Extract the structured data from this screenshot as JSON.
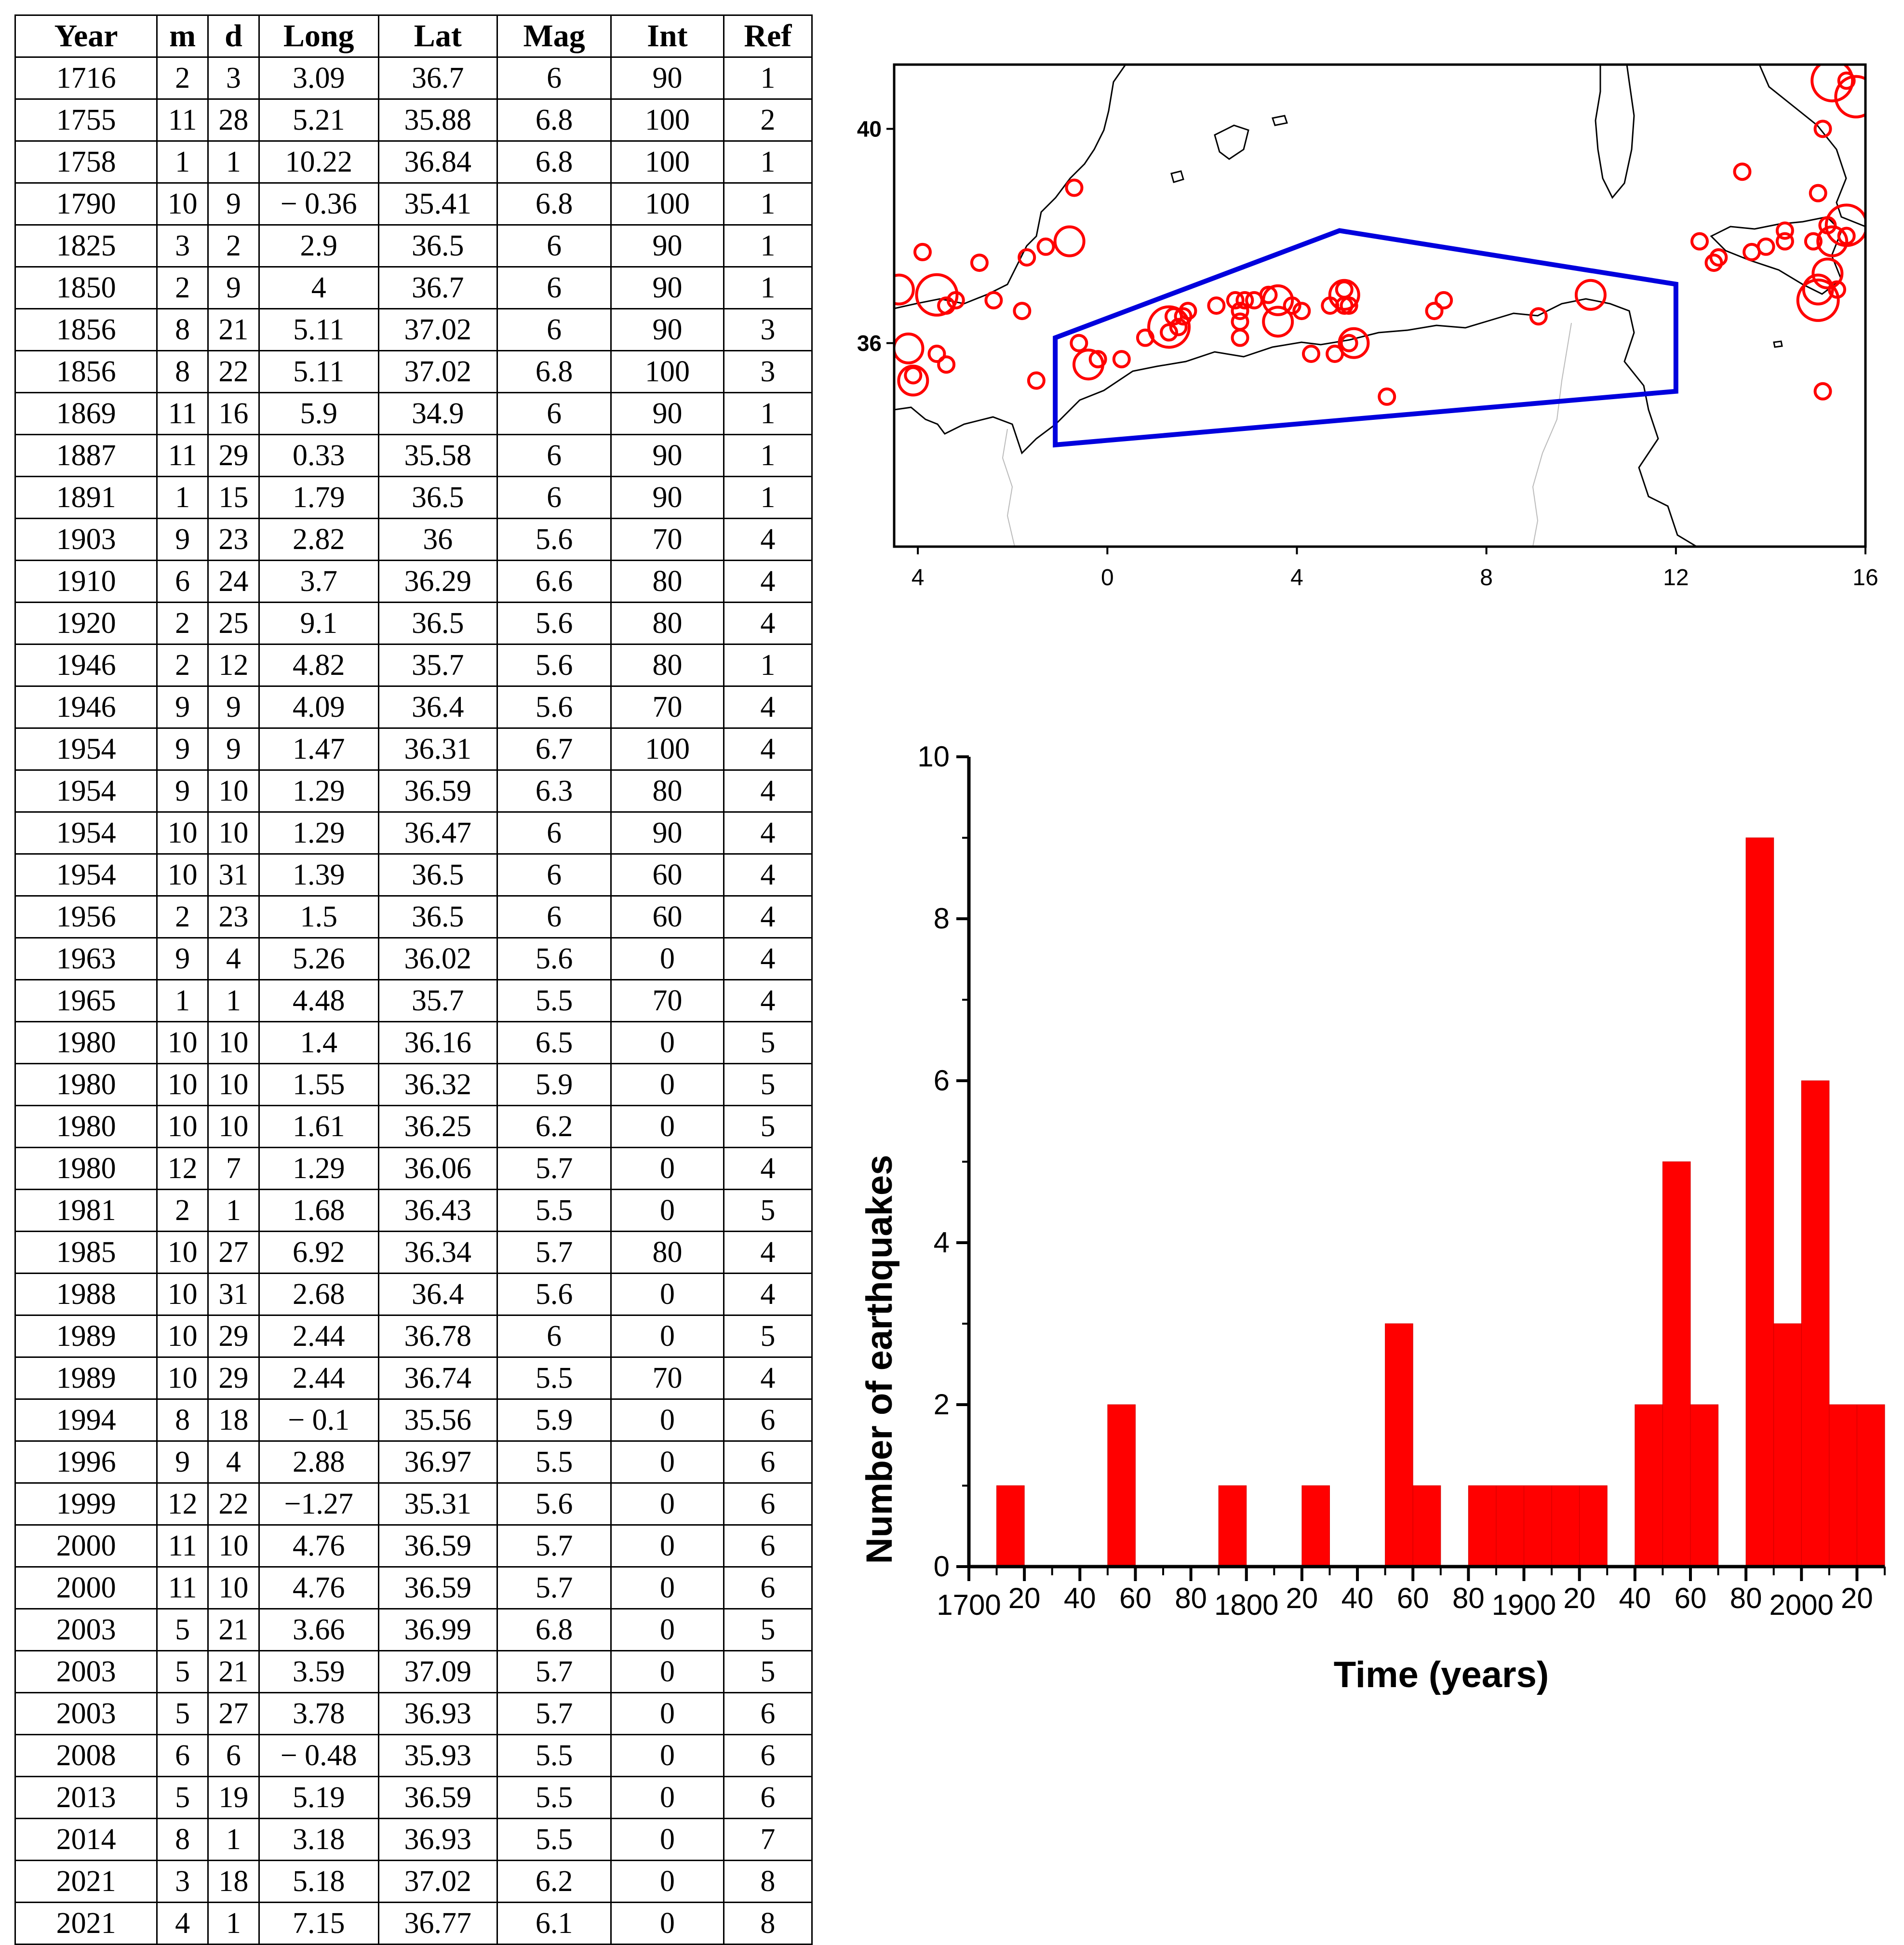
{
  "table": {
    "headers": [
      "Year",
      "m",
      "d",
      "Long",
      "Lat",
      "Mag",
      "Int",
      "Ref"
    ],
    "rows": [
      [
        "1716",
        "2",
        "3",
        "3.09",
        "36.7",
        "6",
        "90",
        "1"
      ],
      [
        "1755",
        "11",
        "28",
        "5.21",
        "35.88",
        "6.8",
        "100",
        "2"
      ],
      [
        "1758",
        "1",
        "1",
        "10.22",
        "36.84",
        "6.8",
        "100",
        "1"
      ],
      [
        "1790",
        "10",
        "9",
        "− 0.36",
        "35.41",
        "6.8",
        "100",
        "1"
      ],
      [
        "1825",
        "3",
        "2",
        "2.9",
        "36.5",
        "6",
        "90",
        "1"
      ],
      [
        "1850",
        "2",
        "9",
        "4",
        "36.7",
        "6",
        "90",
        "1"
      ],
      [
        "1856",
        "8",
        "21",
        "5.11",
        "37.02",
        "6",
        "90",
        "3"
      ],
      [
        "1856",
        "8",
        "22",
        "5.11",
        "37.02",
        "6.8",
        "100",
        "3"
      ],
      [
        "1869",
        "11",
        "16",
        "5.9",
        "34.9",
        "6",
        "90",
        "1"
      ],
      [
        "1887",
        "11",
        "29",
        "0.33",
        "35.58",
        "6",
        "90",
        "1"
      ],
      [
        "1891",
        "1",
        "15",
        "1.79",
        "36.5",
        "6",
        "90",
        "1"
      ],
      [
        "1903",
        "9",
        "23",
        "2.82",
        "36",
        "5.6",
        "70",
        "4"
      ],
      [
        "1910",
        "6",
        "24",
        "3.7",
        "36.29",
        "6.6",
        "80",
        "4"
      ],
      [
        "1920",
        "2",
        "25",
        "9.1",
        "36.5",
        "5.6",
        "80",
        "4"
      ],
      [
        "1946",
        "2",
        "12",
        "4.82",
        "35.7",
        "5.6",
        "80",
        "1"
      ],
      [
        "1946",
        "9",
        "9",
        "4.09",
        "36.4",
        "5.6",
        "70",
        "4"
      ],
      [
        "1954",
        "9",
        "9",
        "1.47",
        "36.31",
        "6.7",
        "100",
        "4"
      ],
      [
        "1954",
        "9",
        "10",
        "1.29",
        "36.59",
        "6.3",
        "80",
        "4"
      ],
      [
        "1954",
        "10",
        "10",
        "1.29",
        "36.47",
        "6",
        "90",
        "4"
      ],
      [
        "1954",
        "10",
        "31",
        "1.39",
        "36.5",
        "6",
        "60",
        "4"
      ],
      [
        "1956",
        "2",
        "23",
        "1.5",
        "36.5",
        "6",
        "60",
        "4"
      ],
      [
        "1963",
        "9",
        "4",
        "5.26",
        "36.02",
        "5.6",
        "0",
        "4"
      ],
      [
        "1965",
        "1",
        "1",
        "4.48",
        "35.7",
        "5.5",
        "70",
        "4"
      ],
      [
        "1980",
        "10",
        "10",
        "1.4",
        "36.16",
        "6.5",
        "0",
        "5"
      ],
      [
        "1980",
        "10",
        "10",
        "1.55",
        "36.32",
        "5.9",
        "0",
        "5"
      ],
      [
        "1980",
        "10",
        "10",
        "1.61",
        "36.25",
        "6.2",
        "0",
        "5"
      ],
      [
        "1980",
        "12",
        "7",
        "1.29",
        "36.06",
        "5.7",
        "0",
        "4"
      ],
      [
        "1981",
        "2",
        "1",
        "1.68",
        "36.43",
        "5.5",
        "0",
        "5"
      ],
      [
        "1985",
        "10",
        "27",
        "6.92",
        "36.34",
        "5.7",
        "80",
        "4"
      ],
      [
        "1988",
        "10",
        "31",
        "2.68",
        "36.4",
        "5.6",
        "0",
        "4"
      ],
      [
        "1989",
        "10",
        "29",
        "2.44",
        "36.78",
        "6",
        "0",
        "5"
      ],
      [
        "1989",
        "10",
        "29",
        "2.44",
        "36.74",
        "5.5",
        "70",
        "4"
      ],
      [
        "1994",
        "8",
        "18",
        "− 0.1",
        "35.56",
        "5.9",
        "0",
        "6"
      ],
      [
        "1996",
        "9",
        "4",
        "2.88",
        "36.97",
        "5.5",
        "0",
        "6"
      ],
      [
        "1999",
        "12",
        "22",
        "−1.27",
        "35.31",
        "5.6",
        "0",
        "6"
      ],
      [
        "2000",
        "11",
        "10",
        "4.76",
        "36.59",
        "5.7",
        "0",
        "6"
      ],
      [
        "2000",
        "11",
        "10",
        "4.76",
        "36.59",
        "5.7",
        "0",
        "6"
      ],
      [
        "2003",
        "5",
        "21",
        "3.66",
        "36.99",
        "6.8",
        "0",
        "5"
      ],
      [
        "2003",
        "5",
        "21",
        "3.59",
        "37.09",
        "5.7",
        "0",
        "5"
      ],
      [
        "2003",
        "5",
        "27",
        "3.78",
        "36.93",
        "5.7",
        "0",
        "6"
      ],
      [
        "2008",
        "6",
        "6",
        "− 0.48",
        "35.93",
        "5.5",
        "0",
        "6"
      ],
      [
        "2013",
        "5",
        "19",
        "5.19",
        "36.59",
        "5.5",
        "0",
        "6"
      ],
      [
        "2014",
        "8",
        "1",
        "3.18",
        "36.93",
        "5.5",
        "0",
        "7"
      ],
      [
        "2021",
        "3",
        "18",
        "5.18",
        "37.02",
        "6.2",
        "0",
        "8"
      ],
      [
        "2021",
        "4",
        "1",
        "7.15",
        "36.77",
        "6.1",
        "0",
        "8"
      ]
    ]
  },
  "map": {
    "x_range": [
      -4.5,
      16
    ],
    "y_range": [
      32.2,
      41.2
    ],
    "x_ticks": [
      "4",
      "0",
      "4",
      "8",
      "12",
      "16"
    ],
    "y_ticks": [
      "40",
      "36"
    ],
    "colors": {
      "epicenter": "#ff0000",
      "zone": "#0000dd",
      "coast": "#000000",
      "border": "#bbbbbb"
    },
    "zone_polygon": [
      [
        -1.1,
        36.1
      ],
      [
        4.9,
        38.1
      ],
      [
        12.0,
        37.1
      ],
      [
        12.0,
        35.1
      ],
      [
        -1.1,
        34.1
      ]
    ],
    "events": [
      [
        15.3,
        40.9,
        3
      ],
      [
        15.8,
        40.6,
        3
      ],
      [
        15.6,
        40.9,
        1
      ],
      [
        15.1,
        40.0,
        1
      ],
      [
        13.4,
        39.2,
        1
      ],
      [
        15.0,
        38.8,
        1
      ],
      [
        15.6,
        38.2,
        3
      ],
      [
        15.2,
        38.2,
        1
      ],
      [
        15.6,
        38.0,
        1
      ],
      [
        15.3,
        37.9,
        2
      ],
      [
        14.9,
        37.9,
        1
      ],
      [
        14.3,
        37.9,
        1
      ],
      [
        14.3,
        38.1,
        1
      ],
      [
        13.9,
        37.8,
        1
      ],
      [
        13.6,
        37.7,
        1
      ],
      [
        12.5,
        37.9,
        1
      ],
      [
        12.9,
        37.6,
        1
      ],
      [
        12.8,
        37.5,
        1
      ],
      [
        15.2,
        37.3,
        2
      ],
      [
        15.0,
        37.0,
        2
      ],
      [
        15.0,
        36.8,
        3
      ],
      [
        15.4,
        37.0,
        1
      ],
      [
        15.1,
        35.1,
        1
      ],
      [
        -3.9,
        37.7,
        1
      ],
      [
        -2.7,
        37.5,
        1
      ],
      [
        -1.7,
        37.6,
        1
      ],
      [
        -1.3,
        37.8,
        1
      ],
      [
        -0.8,
        37.9,
        2
      ],
      [
        -0.7,
        38.9,
        1
      ],
      [
        -3.6,
        36.9,
        3
      ],
      [
        -4.4,
        37.0,
        2
      ],
      [
        -3.2,
        36.8,
        1
      ],
      [
        -3.4,
        36.7,
        1
      ],
      [
        -2.4,
        36.8,
        1
      ],
      [
        -1.8,
        36.6,
        1
      ],
      [
        -4.2,
        35.9,
        2
      ],
      [
        -3.6,
        35.8,
        1
      ],
      [
        -3.4,
        35.6,
        1
      ],
      [
        -4.1,
        35.3,
        2
      ],
      [
        -4.1,
        35.4,
        1
      ],
      [
        -1.5,
        35.3,
        1
      ],
      [
        -0.4,
        35.6,
        2
      ],
      [
        -0.2,
        35.7,
        1
      ],
      [
        0.3,
        35.7,
        1
      ],
      [
        0.8,
        36.1,
        1
      ],
      [
        -0.6,
        36.0,
        1
      ],
      [
        1.3,
        36.3,
        3
      ],
      [
        1.4,
        36.5,
        1
      ],
      [
        1.6,
        36.5,
        1
      ],
      [
        1.3,
        36.2,
        1
      ],
      [
        1.5,
        36.3,
        1
      ],
      [
        1.7,
        36.6,
        1
      ],
      [
        2.3,
        36.7,
        1
      ],
      [
        2.7,
        36.8,
        1
      ],
      [
        2.8,
        36.6,
        1
      ],
      [
        2.8,
        36.4,
        1
      ],
      [
        2.9,
        36.8,
        1
      ],
      [
        3.1,
        36.8,
        1
      ],
      [
        2.8,
        36.1,
        1
      ],
      [
        3.4,
        36.9,
        1
      ],
      [
        3.6,
        36.8,
        2
      ],
      [
        3.6,
        36.4,
        2
      ],
      [
        3.9,
        36.7,
        1
      ],
      [
        4.1,
        36.6,
        1
      ],
      [
        4.3,
        35.8,
        1
      ],
      [
        4.7,
        36.7,
        1
      ],
      [
        5.0,
        36.7,
        1
      ],
      [
        4.8,
        35.8,
        1
      ],
      [
        5.0,
        36.9,
        2
      ],
      [
        5.0,
        37.0,
        1
      ],
      [
        5.1,
        36.7,
        1
      ],
      [
        5.1,
        36.0,
        1
      ],
      [
        5.2,
        36.0,
        2
      ],
      [
        5.9,
        35.0,
        1
      ],
      [
        6.9,
        36.6,
        1
      ],
      [
        7.1,
        36.8,
        1
      ],
      [
        9.1,
        36.5,
        1
      ],
      [
        10.2,
        36.9,
        2
      ]
    ]
  },
  "chart_data": {
    "type": "bar",
    "title": "",
    "xlabel": "Time (years)",
    "ylabel": "Number of earthquakes",
    "bin_width": 10,
    "bins_start": [
      1710,
      1750,
      1790,
      1820,
      1850,
      1860,
      1880,
      1890,
      1900,
      1910,
      1920,
      1940,
      1950,
      1960,
      1980,
      1990,
      2000,
      2010,
      2020
    ],
    "values": [
      1,
      2,
      1,
      1,
      3,
      1,
      1,
      1,
      1,
      1,
      1,
      2,
      5,
      2,
      9,
      3,
      6,
      2,
      2
    ],
    "xlim": [
      1700,
      2030
    ],
    "ylim": [
      0,
      10
    ],
    "y_ticks": [
      "0",
      "2",
      "4",
      "6",
      "8",
      "10"
    ],
    "x_tick_labels": [
      "1700",
      "20",
      "40",
      "60",
      "80",
      "1800",
      "20",
      "40",
      "60",
      "80",
      "1900",
      "20",
      "40",
      "60",
      "80",
      "2000",
      "20"
    ],
    "bar_color": "#ff0000"
  }
}
